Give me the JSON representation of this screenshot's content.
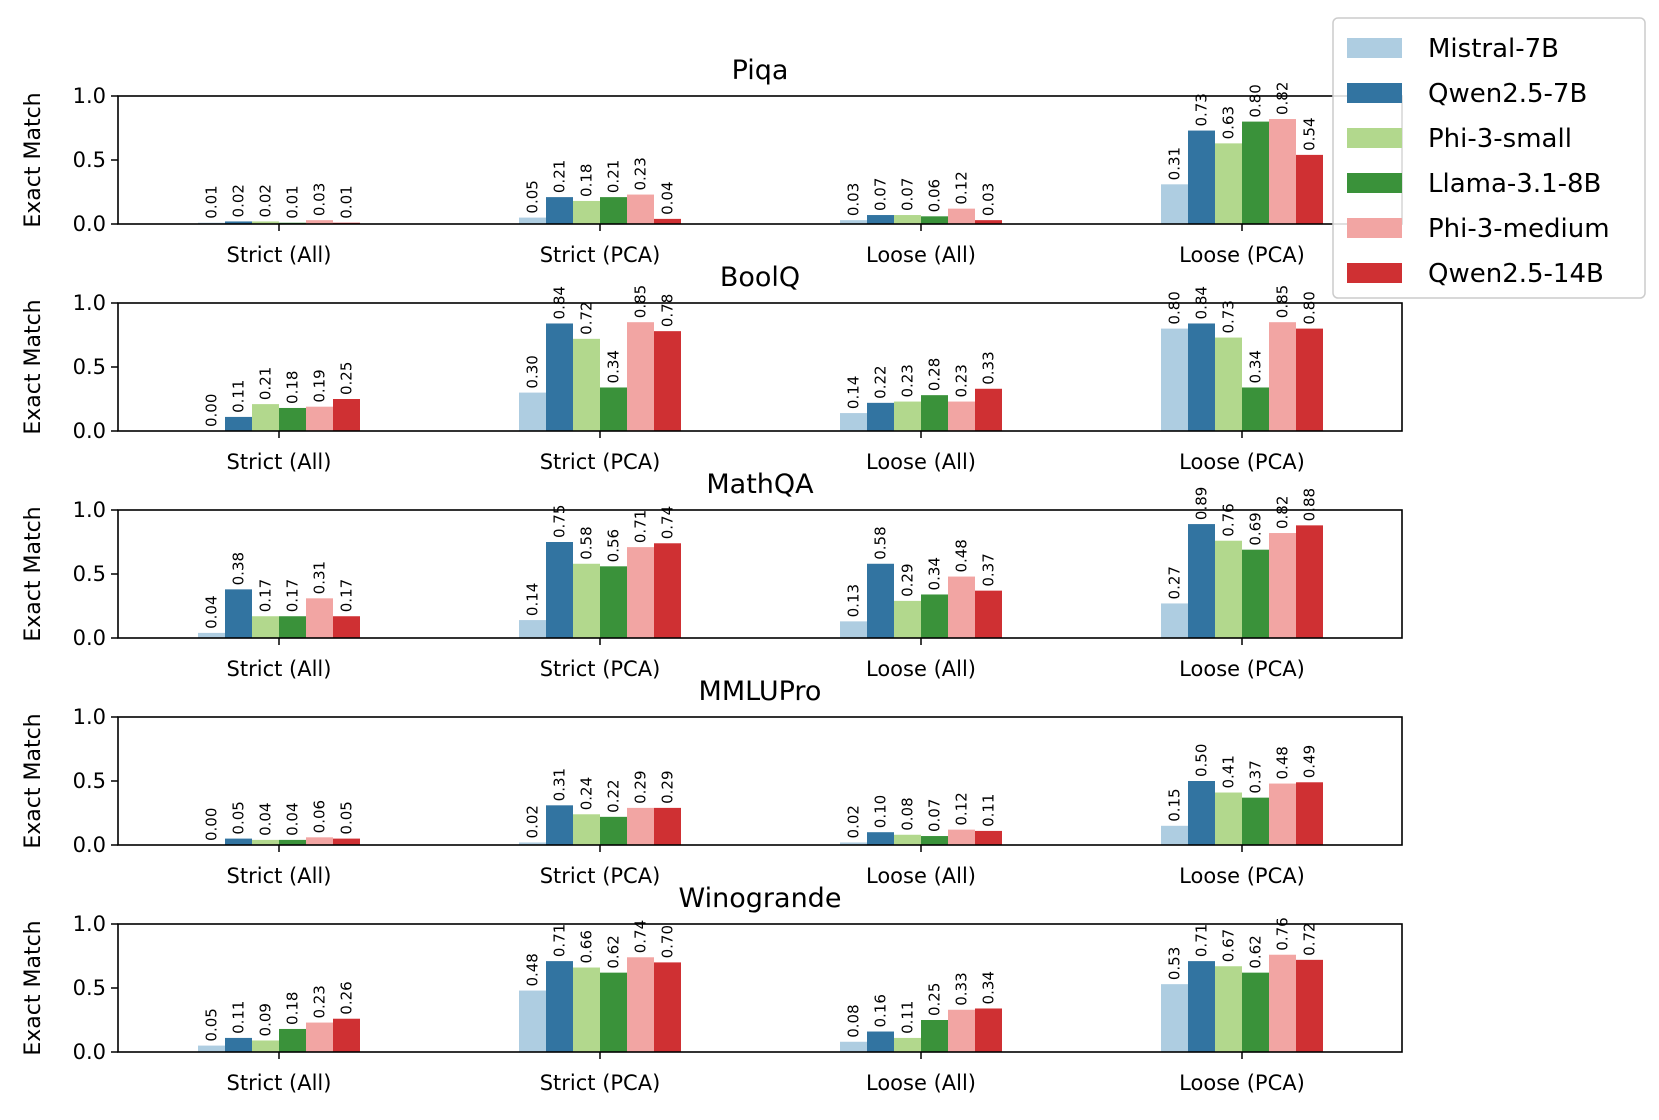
{
  "series": [
    {
      "name": "Mistral-7B",
      "color": "#aecde1"
    },
    {
      "name": "Qwen2.5-7B",
      "color": "#3274a1"
    },
    {
      "name": "Phi-3-small",
      "color": "#b2d88d"
    },
    {
      "name": "Llama-3.1-8B",
      "color": "#3a923a"
    },
    {
      "name": "Phi-3-medium",
      "color": "#f2a5a3"
    },
    {
      "name": "Qwen2.5-14B",
      "color": "#cf3033"
    }
  ],
  "chart_data": [
    {
      "type": "bar",
      "title": "Piqa",
      "ylabel": "Exact Match",
      "ylim": [
        0,
        1.0
      ],
      "yticks": [
        "0.0",
        "0.5",
        "1.0"
      ],
      "categories": [
        "Strict (All)",
        "Strict (PCA)",
        "Loose (All)",
        "Loose (PCA)"
      ],
      "series": [
        {
          "name": "Mistral-7B",
          "values": [
            0.01,
            0.05,
            0.03,
            0.31
          ],
          "labels": [
            "0.01",
            "0.05",
            "0.03",
            "0.31"
          ]
        },
        {
          "name": "Qwen2.5-7B",
          "values": [
            0.02,
            0.21,
            0.07,
            0.73
          ],
          "labels": [
            "0.02",
            "0.21",
            "0.07",
            "0.73"
          ]
        },
        {
          "name": "Phi-3-small",
          "values": [
            0.02,
            0.18,
            0.07,
            0.63
          ],
          "labels": [
            "0.02",
            "0.18",
            "0.07",
            "0.63"
          ]
        },
        {
          "name": "Llama-3.1-8B",
          "values": [
            0.01,
            0.21,
            0.06,
            0.8
          ],
          "labels": [
            "0.01",
            "0.21",
            "0.06",
            "0.80"
          ]
        },
        {
          "name": "Phi-3-medium",
          "values": [
            0.03,
            0.23,
            0.12,
            0.82
          ],
          "labels": [
            "0.03",
            "0.23",
            "0.12",
            "0.82"
          ]
        },
        {
          "name": "Qwen2.5-14B",
          "values": [
            0.01,
            0.04,
            0.03,
            0.54
          ],
          "labels": [
            "0.01",
            "0.04",
            "0.03",
            "0.54"
          ]
        }
      ]
    },
    {
      "type": "bar",
      "title": "BoolQ",
      "ylabel": "Exact Match",
      "ylim": [
        0,
        1.0
      ],
      "yticks": [
        "0.0",
        "0.5",
        "1.0"
      ],
      "categories": [
        "Strict (All)",
        "Strict (PCA)",
        "Loose (All)",
        "Loose (PCA)"
      ],
      "series": [
        {
          "name": "Mistral-7B",
          "values": [
            0.0,
            0.3,
            0.14,
            0.8
          ],
          "labels": [
            "0.00",
            "0.30",
            "0.14",
            "0.80"
          ]
        },
        {
          "name": "Qwen2.5-7B",
          "values": [
            0.11,
            0.84,
            0.22,
            0.84
          ],
          "labels": [
            "0.11",
            "0.84",
            "0.22",
            "0.84"
          ]
        },
        {
          "name": "Phi-3-small",
          "values": [
            0.21,
            0.72,
            0.23,
            0.73
          ],
          "labels": [
            "0.21",
            "0.72",
            "0.23",
            "0.73"
          ]
        },
        {
          "name": "Llama-3.1-8B",
          "values": [
            0.18,
            0.34,
            0.28,
            0.34
          ],
          "labels": [
            "0.18",
            "0.34",
            "0.28",
            "0.34"
          ]
        },
        {
          "name": "Phi-3-medium",
          "values": [
            0.19,
            0.85,
            0.23,
            0.85
          ],
          "labels": [
            "0.19",
            "0.85",
            "0.23",
            "0.85"
          ]
        },
        {
          "name": "Qwen2.5-14B",
          "values": [
            0.25,
            0.78,
            0.33,
            0.8
          ],
          "labels": [
            "0.25",
            "0.78",
            "0.33",
            "0.80"
          ]
        }
      ]
    },
    {
      "type": "bar",
      "title": "MathQA",
      "ylabel": "Exact Match",
      "ylim": [
        0,
        1.0
      ],
      "yticks": [
        "0.0",
        "0.5",
        "1.0"
      ],
      "categories": [
        "Strict (All)",
        "Strict (PCA)",
        "Loose (All)",
        "Loose (PCA)"
      ],
      "series": [
        {
          "name": "Mistral-7B",
          "values": [
            0.04,
            0.14,
            0.13,
            0.27
          ],
          "labels": [
            "0.04",
            "0.14",
            "0.13",
            "0.27"
          ]
        },
        {
          "name": "Qwen2.5-7B",
          "values": [
            0.38,
            0.75,
            0.58,
            0.89
          ],
          "labels": [
            "0.38",
            "0.75",
            "0.58",
            "0.89"
          ]
        },
        {
          "name": "Phi-3-small",
          "values": [
            0.17,
            0.58,
            0.29,
            0.76
          ],
          "labels": [
            "0.17",
            "0.58",
            "0.29",
            "0.76"
          ]
        },
        {
          "name": "Llama-3.1-8B",
          "values": [
            0.17,
            0.56,
            0.34,
            0.69
          ],
          "labels": [
            "0.17",
            "0.56",
            "0.34",
            "0.69"
          ]
        },
        {
          "name": "Phi-3-medium",
          "values": [
            0.31,
            0.71,
            0.48,
            0.82
          ],
          "labels": [
            "0.31",
            "0.71",
            "0.48",
            "0.82"
          ]
        },
        {
          "name": "Qwen2.5-14B",
          "values": [
            0.17,
            0.74,
            0.37,
            0.88
          ],
          "labels": [
            "0.17",
            "0.74",
            "0.37",
            "0.88"
          ]
        }
      ]
    },
    {
      "type": "bar",
      "title": "MMLUPro",
      "ylabel": "Exact Match",
      "ylim": [
        0,
        1.0
      ],
      "yticks": [
        "0.0",
        "0.5",
        "1.0"
      ],
      "categories": [
        "Strict (All)",
        "Strict (PCA)",
        "Loose (All)",
        "Loose (PCA)"
      ],
      "series": [
        {
          "name": "Mistral-7B",
          "values": [
            0.0,
            0.02,
            0.02,
            0.15
          ],
          "labels": [
            "0.00",
            "0.02",
            "0.02",
            "0.15"
          ]
        },
        {
          "name": "Qwen2.5-7B",
          "values": [
            0.05,
            0.31,
            0.1,
            0.5
          ],
          "labels": [
            "0.05",
            "0.31",
            "0.10",
            "0.50"
          ]
        },
        {
          "name": "Phi-3-small",
          "values": [
            0.04,
            0.24,
            0.08,
            0.41
          ],
          "labels": [
            "0.04",
            "0.24",
            "0.08",
            "0.41"
          ]
        },
        {
          "name": "Llama-3.1-8B",
          "values": [
            0.04,
            0.22,
            0.07,
            0.37
          ],
          "labels": [
            "0.04",
            "0.22",
            "0.07",
            "0.37"
          ]
        },
        {
          "name": "Phi-3-medium",
          "values": [
            0.06,
            0.29,
            0.12,
            0.48
          ],
          "labels": [
            "0.06",
            "0.29",
            "0.12",
            "0.48"
          ]
        },
        {
          "name": "Qwen2.5-14B",
          "values": [
            0.05,
            0.29,
            0.11,
            0.49
          ],
          "labels": [
            "0.05",
            "0.29",
            "0.11",
            "0.49"
          ]
        }
      ]
    },
    {
      "type": "bar",
      "title": "Winogrande",
      "ylabel": "Exact Match",
      "ylim": [
        0,
        1.0
      ],
      "yticks": [
        "0.0",
        "0.5",
        "1.0"
      ],
      "categories": [
        "Strict (All)",
        "Strict (PCA)",
        "Loose (All)",
        "Loose (PCA)"
      ],
      "series": [
        {
          "name": "Mistral-7B",
          "values": [
            0.05,
            0.48,
            0.08,
            0.53
          ],
          "labels": [
            "0.05",
            "0.48",
            "0.08",
            "0.53"
          ]
        },
        {
          "name": "Qwen2.5-7B",
          "values": [
            0.11,
            0.71,
            0.16,
            0.71
          ],
          "labels": [
            "0.11",
            "0.71",
            "0.16",
            "0.71"
          ]
        },
        {
          "name": "Phi-3-small",
          "values": [
            0.09,
            0.66,
            0.11,
            0.67
          ],
          "labels": [
            "0.09",
            "0.66",
            "0.11",
            "0.67"
          ]
        },
        {
          "name": "Llama-3.1-8B",
          "values": [
            0.18,
            0.62,
            0.25,
            0.62
          ],
          "labels": [
            "0.18",
            "0.62",
            "0.25",
            "0.62"
          ]
        },
        {
          "name": "Phi-3-medium",
          "values": [
            0.23,
            0.74,
            0.33,
            0.76
          ],
          "labels": [
            "0.23",
            "0.74",
            "0.33",
            "0.76"
          ]
        },
        {
          "name": "Qwen2.5-14B",
          "values": [
            0.26,
            0.7,
            0.34,
            0.72
          ],
          "labels": [
            "0.26",
            "0.70",
            "0.34",
            "0.72"
          ]
        }
      ]
    }
  ]
}
